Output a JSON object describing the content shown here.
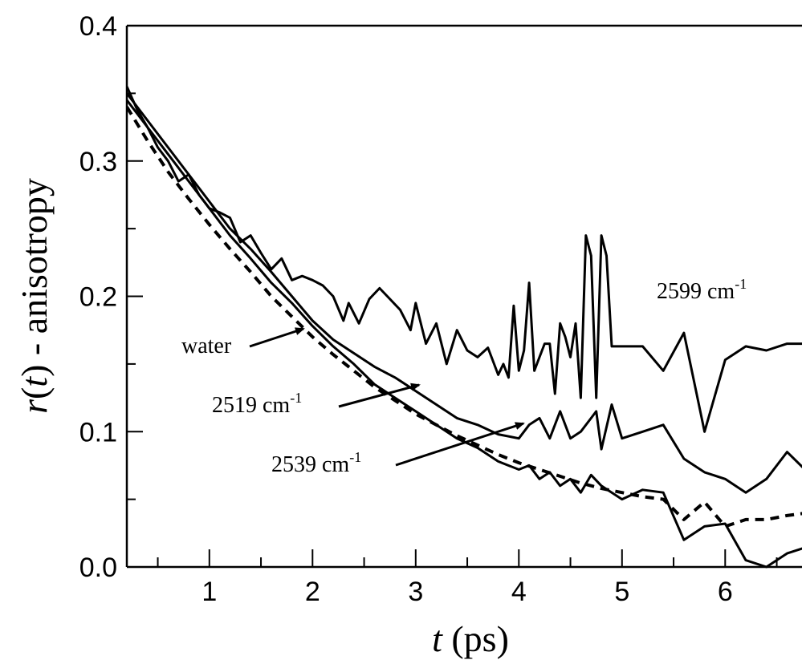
{
  "chart_data": {
    "type": "line",
    "xlabel": "t (ps)",
    "ylabel": "r(t) - anisotropy",
    "xlim": [
      0.2,
      7.0
    ],
    "ylim": [
      0.0,
      0.4
    ],
    "xticks": [
      "1",
      "2",
      "3",
      "4",
      "5",
      "6"
    ],
    "yticks": [
      "0.0",
      "0.1",
      "0.2",
      "0.3",
      "0.4"
    ],
    "grid": false,
    "series": [
      {
        "name": "2599 cm-1",
        "style": "solid",
        "x": [
          0.2,
          0.3,
          0.4,
          0.5,
          0.6,
          0.7,
          0.8,
          0.9,
          1.0,
          1.1,
          1.2,
          1.3,
          1.4,
          1.5,
          1.6,
          1.7,
          1.8,
          1.9,
          2.0,
          2.1,
          2.2,
          2.3,
          2.35,
          2.45,
          2.55,
          2.65,
          2.75,
          2.85,
          2.95,
          3.0,
          3.1,
          3.2,
          3.3,
          3.4,
          3.5,
          3.6,
          3.7,
          3.8,
          3.85,
          3.9,
          3.95,
          4.0,
          4.05,
          4.1,
          4.15,
          4.2,
          4.25,
          4.3,
          4.35,
          4.4,
          4.45,
          4.5,
          4.55,
          4.6,
          4.65,
          4.7,
          4.75,
          4.8,
          4.85,
          4.9,
          4.95,
          5.0,
          5.2,
          5.4,
          5.6,
          5.8,
          6.0,
          6.2,
          6.4,
          6.6,
          6.8,
          7.0
        ],
        "y": [
          0.355,
          0.338,
          0.325,
          0.31,
          0.3,
          0.285,
          0.29,
          0.275,
          0.265,
          0.262,
          0.258,
          0.24,
          0.245,
          0.232,
          0.22,
          0.228,
          0.212,
          0.215,
          0.212,
          0.208,
          0.2,
          0.182,
          0.195,
          0.18,
          0.198,
          0.206,
          0.198,
          0.19,
          0.175,
          0.195,
          0.165,
          0.18,
          0.15,
          0.175,
          0.16,
          0.155,
          0.162,
          0.142,
          0.15,
          0.14,
          0.193,
          0.145,
          0.16,
          0.21,
          0.145,
          0.155,
          0.165,
          0.165,
          0.128,
          0.18,
          0.17,
          0.155,
          0.18,
          0.125,
          0.245,
          0.23,
          0.125,
          0.245,
          0.23,
          0.163,
          0.163,
          0.163,
          0.163,
          0.145,
          0.173,
          0.1,
          0.153,
          0.163,
          0.16,
          0.165,
          0.165,
          0.165
        ]
      },
      {
        "name": "2519 cm-1",
        "style": "solid",
        "x": [
          0.2,
          0.4,
          0.6,
          0.8,
          1.0,
          1.2,
          1.4,
          1.6,
          1.8,
          2.0,
          2.2,
          2.4,
          2.6,
          2.8,
          3.0,
          3.2,
          3.4,
          3.6,
          3.8,
          4.0,
          4.1,
          4.2,
          4.3,
          4.4,
          4.5,
          4.6,
          4.7,
          4.75,
          4.8,
          4.9,
          5.0,
          5.2,
          5.4,
          5.6,
          5.8,
          6.0,
          6.2,
          6.4,
          6.6,
          6.8,
          7.0
        ],
        "y": [
          0.35,
          0.33,
          0.31,
          0.29,
          0.27,
          0.25,
          0.235,
          0.218,
          0.2,
          0.182,
          0.168,
          0.158,
          0.148,
          0.14,
          0.13,
          0.12,
          0.11,
          0.105,
          0.098,
          0.095,
          0.105,
          0.11,
          0.095,
          0.115,
          0.095,
          0.1,
          0.11,
          0.115,
          0.087,
          0.12,
          0.095,
          0.1,
          0.105,
          0.08,
          0.07,
          0.065,
          0.055,
          0.065,
          0.085,
          0.07,
          0.045
        ]
      },
      {
        "name": "2539 cm-1",
        "style": "solid",
        "x": [
          0.2,
          0.4,
          0.6,
          0.8,
          1.0,
          1.2,
          1.4,
          1.6,
          1.8,
          2.0,
          2.2,
          2.4,
          2.6,
          2.8,
          3.0,
          3.2,
          3.4,
          3.6,
          3.8,
          4.0,
          4.1,
          4.2,
          4.3,
          4.4,
          4.5,
          4.6,
          4.7,
          4.8,
          4.9,
          5.0,
          5.2,
          5.4,
          5.6,
          5.8,
          6.0,
          6.2,
          6.4,
          6.6,
          6.8,
          7.0
        ],
        "y": [
          0.345,
          0.325,
          0.305,
          0.285,
          0.265,
          0.245,
          0.228,
          0.21,
          0.195,
          0.178,
          0.163,
          0.15,
          0.135,
          0.125,
          0.115,
          0.105,
          0.095,
          0.088,
          0.078,
          0.072,
          0.075,
          0.065,
          0.07,
          0.06,
          0.065,
          0.055,
          0.068,
          0.06,
          0.055,
          0.05,
          0.057,
          0.055,
          0.02,
          0.03,
          0.032,
          0.005,
          0.0,
          0.01,
          0.015,
          0.0
        ]
      },
      {
        "name": "water",
        "style": "dashed",
        "x": [
          0.2,
          0.4,
          0.6,
          0.8,
          1.0,
          1.2,
          1.4,
          1.6,
          1.8,
          2.0,
          2.2,
          2.4,
          2.6,
          2.8,
          3.0,
          3.2,
          3.4,
          3.6,
          3.8,
          4.0,
          4.2,
          4.4,
          4.6,
          4.8,
          5.0,
          5.2,
          5.4,
          5.6,
          5.8,
          6.0,
          6.2,
          6.4,
          6.6,
          6.8,
          7.0
        ],
        "y": [
          0.34,
          0.315,
          0.292,
          0.272,
          0.253,
          0.235,
          0.218,
          0.2,
          0.185,
          0.17,
          0.157,
          0.145,
          0.133,
          0.123,
          0.113,
          0.105,
          0.097,
          0.09,
          0.083,
          0.077,
          0.072,
          0.067,
          0.062,
          0.058,
          0.055,
          0.052,
          0.05,
          0.035,
          0.048,
          0.03,
          0.035,
          0.035,
          0.038,
          0.04,
          0.035
        ]
      }
    ],
    "annotations": [
      {
        "base": "2599 cm",
        "sup": "-1"
      },
      {
        "base": "water",
        "sup": ""
      },
      {
        "base": "2519 cm",
        "sup": "-1"
      },
      {
        "base": "2539 cm",
        "sup": "-1"
      }
    ]
  }
}
